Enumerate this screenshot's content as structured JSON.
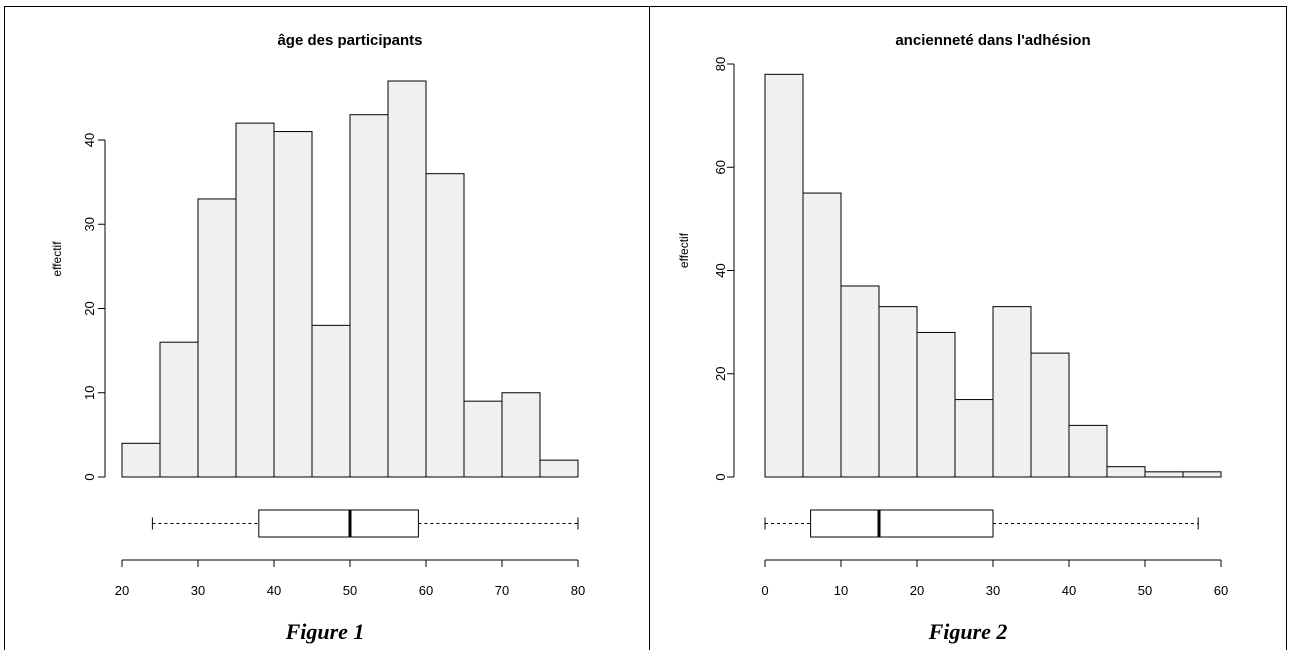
{
  "chart_data": [
    {
      "type": "bar",
      "title": "âge des participants",
      "ylabel": "effectif",
      "xlabel": "",
      "bin_edges": [
        20,
        25,
        30,
        35,
        40,
        45,
        50,
        55,
        60,
        65,
        70,
        75,
        80
      ],
      "values": [
        4,
        16,
        33,
        42,
        41,
        18,
        43,
        47,
        36,
        9,
        10,
        2
      ],
      "ylim": [
        0,
        47
      ],
      "yticks": [
        "0",
        "10",
        "20",
        "30",
        "40"
      ],
      "xlim": [
        20,
        80
      ],
      "xticks": [
        "20",
        "30",
        "40",
        "50",
        "60",
        "70",
        "80"
      ],
      "boxplot": {
        "min": 24,
        "q1": 38,
        "median": 50,
        "q3": 59,
        "max": 80
      }
    },
    {
      "type": "bar",
      "title": "ancienneté dans l'adhésion",
      "ylabel": "effectif",
      "xlabel": "",
      "bin_edges": [
        0,
        5,
        10,
        15,
        20,
        25,
        30,
        35,
        40,
        45,
        50,
        55,
        60
      ],
      "values": [
        78,
        55,
        37,
        33,
        28,
        15,
        33,
        24,
        10,
        2,
        1,
        1
      ],
      "ylim": [
        0,
        80
      ],
      "yticks": [
        "0",
        "20",
        "40",
        "60",
        "80"
      ],
      "xlim": [
        0,
        60
      ],
      "xticks": [
        "0",
        "10",
        "20",
        "30",
        "40",
        "50",
        "60"
      ],
      "boxplot": {
        "min": 0,
        "q1": 6,
        "median": 15,
        "q3": 30,
        "max": 57
      }
    }
  ],
  "captions": [
    "Figure 1",
    "Figure 2"
  ],
  "colors": {
    "bar_fill": "#f0f0f0",
    "stroke": "#000000"
  }
}
